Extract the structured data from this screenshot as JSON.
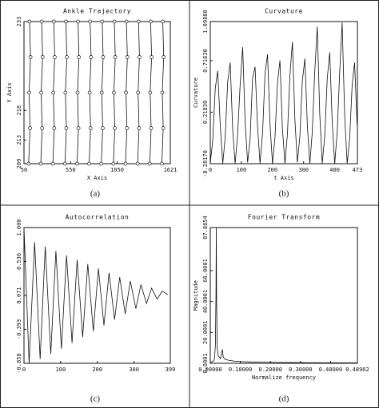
{
  "chart_data": [
    {
      "type": "line",
      "title": "Ankle Trajectory",
      "xlabel": "X Axis",
      "ylabel": "Y Axis",
      "caption": "(a)",
      "markers": "circle",
      "xlim": [
        50,
        1621
      ],
      "xticks": [
        50,
        550,
        1050,
        1621
      ],
      "ylim": [
        209,
        233
      ],
      "yticks": [
        209,
        213,
        218,
        233
      ],
      "series": [
        {
          "color": "#111111",
          "x": [
            100,
            115,
            105,
            120,
            110
          ],
          "values": [
            209,
            215,
            221,
            227,
            233
          ]
        },
        {
          "color": "#111111",
          "x": [
            230,
            245,
            235,
            250,
            240
          ],
          "values": [
            209,
            215,
            221,
            227,
            233
          ]
        },
        {
          "color": "#111111",
          "x": [
            360,
            375,
            365,
            380,
            370
          ],
          "values": [
            209,
            215,
            221,
            227,
            233
          ]
        },
        {
          "color": "#111111",
          "x": [
            490,
            505,
            495,
            510,
            500
          ],
          "values": [
            209,
            215,
            221,
            227,
            233
          ]
        },
        {
          "color": "#111111",
          "x": [
            620,
            635,
            625,
            640,
            630
          ],
          "values": [
            209,
            215,
            221,
            227,
            233
          ]
        },
        {
          "color": "#111111",
          "x": [
            750,
            765,
            755,
            770,
            760
          ],
          "values": [
            209,
            215,
            221,
            227,
            233
          ]
        },
        {
          "color": "#111111",
          "x": [
            880,
            895,
            885,
            900,
            890
          ],
          "values": [
            209,
            215,
            221,
            227,
            233
          ]
        },
        {
          "color": "#111111",
          "x": [
            1010,
            1025,
            1015,
            1030,
            1020
          ],
          "values": [
            209,
            215,
            221,
            227,
            233
          ]
        },
        {
          "color": "#111111",
          "x": [
            1140,
            1155,
            1145,
            1160,
            1150
          ],
          "values": [
            209,
            215,
            221,
            227,
            233
          ]
        },
        {
          "color": "#111111",
          "x": [
            1270,
            1285,
            1275,
            1290,
            1280
          ],
          "values": [
            209,
            215,
            221,
            227,
            233
          ]
        },
        {
          "color": "#111111",
          "x": [
            1400,
            1415,
            1405,
            1420,
            1410
          ],
          "values": [
            209,
            215,
            221,
            227,
            233
          ]
        },
        {
          "color": "#111111",
          "x": [
            1530,
            1545,
            1535,
            1550,
            1540
          ],
          "values": [
            209,
            215,
            221,
            227,
            233
          ]
        }
      ]
    },
    {
      "type": "line",
      "title": "Curvature",
      "xlabel": "t Axis",
      "ylabel": "Curvature",
      "caption": "(b)",
      "xlim": [
        0,
        473
      ],
      "xticks": [
        0,
        100,
        200,
        300,
        400,
        473
      ],
      "ylim": [
        -0.2817,
        1.0988
      ],
      "yticks": [
        {
          "value": -0.2817,
          "label": "-0.28170"
        },
        {
          "value": 0.2183,
          "label": "0.21830"
        },
        {
          "value": 0.7183,
          "label": "0.71830"
        },
        {
          "value": 1.0988,
          "label": "1.09880"
        }
      ],
      "series": [
        {
          "color": "#111111",
          "x": [
            0,
            8,
            16,
            24,
            32,
            40,
            48,
            56,
            64,
            72,
            80,
            88,
            96,
            104,
            112,
            120,
            128,
            136,
            144,
            152,
            160,
            168,
            176,
            184,
            192,
            200,
            208,
            216,
            224,
            232,
            240,
            248,
            256,
            264,
            272,
            280,
            288,
            296,
            304,
            312,
            320,
            328,
            336,
            344,
            352,
            360,
            368,
            376,
            384,
            392,
            400,
            408,
            416,
            424,
            432,
            440,
            448,
            456,
            464,
            472
          ],
          "values": [
            -0.28,
            -0.05,
            0.45,
            0.62,
            0.1,
            -0.28,
            -0.02,
            0.52,
            0.7,
            0.05,
            -0.28,
            0,
            0.48,
            0.85,
            0.12,
            -0.27,
            -0.04,
            0.55,
            0.66,
            0.08,
            -0.28,
            0.02,
            0.6,
            0.78,
            0.1,
            -0.28,
            -0.03,
            0.5,
            0.72,
            0.06,
            -0.28,
            0.01,
            0.58,
            0.9,
            0.15,
            -0.27,
            -0.02,
            0.52,
            0.74,
            0.09,
            -0.28,
            0.03,
            0.62,
            1.05,
            0.2,
            -0.28,
            -0.01,
            0.55,
            0.8,
            0.12,
            -0.28,
            0.02,
            0.6,
            1.09,
            0.18,
            -0.28,
            -0.04,
            0.48,
            0.7,
            0.1
          ]
        }
      ]
    },
    {
      "type": "line",
      "title": "Autocorrelation",
      "caption": "(c)",
      "xlim": [
        0,
        399
      ],
      "xticks": [
        0,
        100,
        200,
        300,
        399
      ],
      "ylim": [
        -0.858,
        1.0
      ],
      "yticks": [
        {
          "value": -0.858,
          "label": "-0.858"
        },
        {
          "value": -0.393,
          "label": "-0.393"
        },
        {
          "value": 0.071,
          "label": "0.071"
        },
        {
          "value": 0.536,
          "label": "0.536"
        },
        {
          "value": 1.0,
          "label": "1.000"
        }
      ],
      "series": [
        {
          "color": "#111111",
          "x": [
            0,
            14,
            29,
            44,
            58,
            73,
            87,
            102,
            116,
            131,
            145,
            160,
            174,
            189,
            203,
            218,
            232,
            247,
            261,
            276,
            290,
            305,
            319,
            334,
            348,
            363,
            377,
            392
          ],
          "values": [
            1.0,
            -0.86,
            0.8,
            -0.8,
            0.74,
            -0.73,
            0.68,
            -0.66,
            0.62,
            -0.58,
            0.56,
            -0.5,
            0.5,
            -0.42,
            0.44,
            -0.34,
            0.38,
            -0.26,
            0.32,
            -0.18,
            0.27,
            -0.11,
            0.22,
            -0.04,
            0.17,
            0.02,
            0.13,
            0.08
          ]
        }
      ]
    },
    {
      "type": "line",
      "title": "Fourier Transform",
      "xlabel": "Normalize frequency",
      "ylabel": "Magnitude",
      "caption": "(d)",
      "xlim": [
        0,
        0.48902
      ],
      "xticks": [
        {
          "value": 0,
          "label": "0.00000"
        },
        {
          "value": 0.1,
          "label": "0.10000"
        },
        {
          "value": 0.2,
          "label": "0.20000"
        },
        {
          "value": 0.3,
          "label": "0.30000"
        },
        {
          "value": 0.4,
          "label": "0.40000"
        },
        {
          "value": 0.48902,
          "label": "0.48902"
        }
      ],
      "ylim": [
        0.0001,
        87.8854
      ],
      "yticks": [
        0.0001,
        20.0001,
        40.0001,
        60.0001,
        87.8854
      ],
      "series": [
        {
          "color": "#111111",
          "x": [
            0,
            0.005,
            0.01,
            0.014,
            0.017,
            0.019,
            0.02,
            0.021,
            0.023,
            0.026,
            0.03,
            0.034,
            0.037,
            0.04,
            0.043,
            0.05,
            0.06,
            0.08,
            0.1,
            0.13,
            0.17,
            0.22,
            0.3,
            0.4,
            0.489
          ],
          "values": [
            0.5,
            0.8,
            1.5,
            3,
            12,
            45,
            87.8,
            40,
            10,
            5,
            4,
            3,
            6,
            9,
            4,
            2.5,
            2,
            1.4,
            1.1,
            0.9,
            0.7,
            0.5,
            0.4,
            0.3,
            0.25
          ]
        }
      ]
    }
  ]
}
